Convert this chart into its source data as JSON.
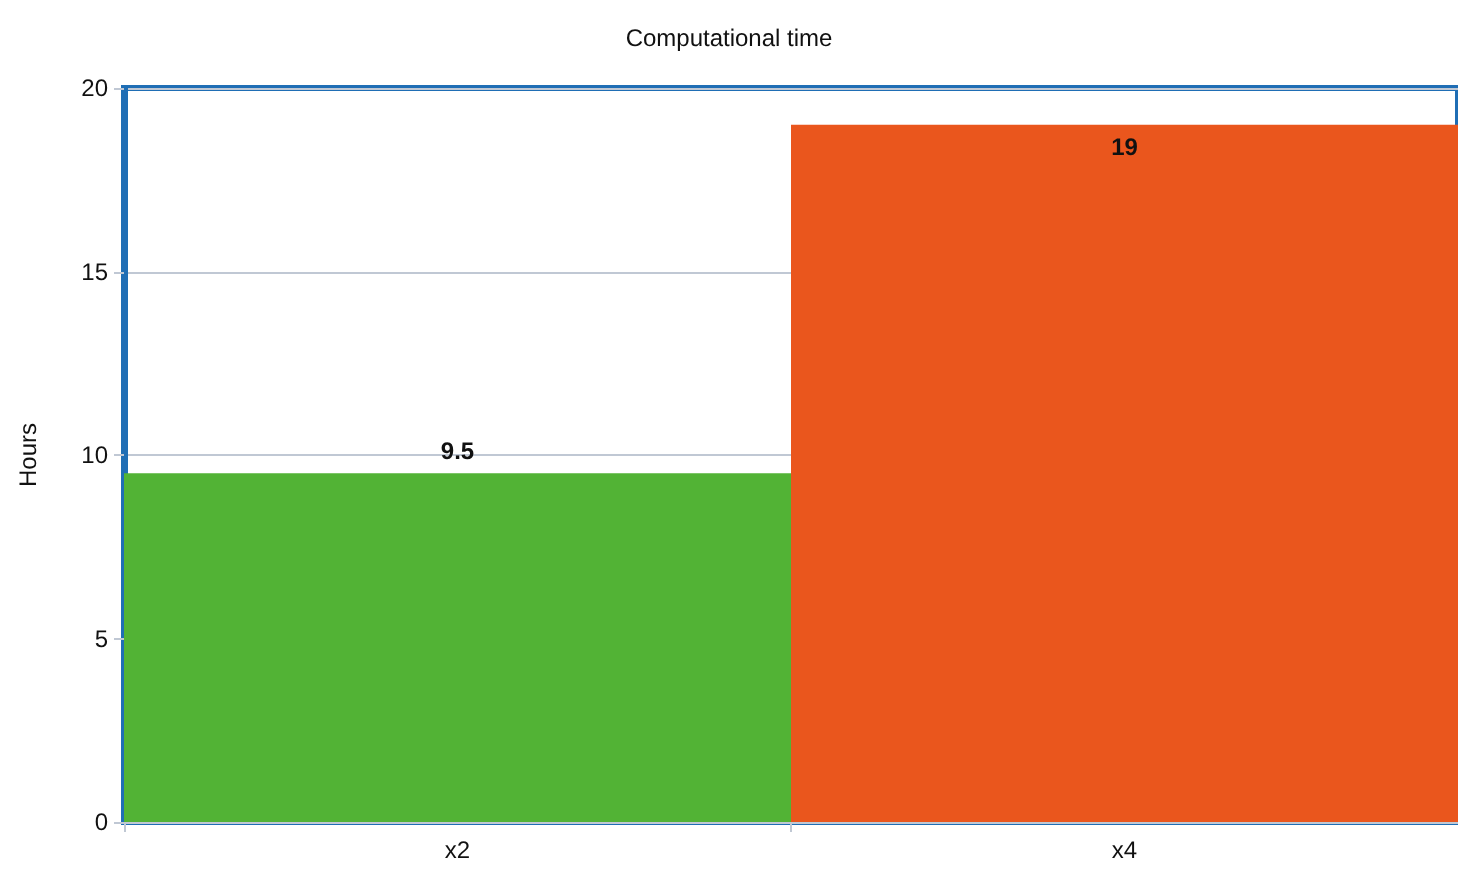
{
  "chart_data": {
    "type": "bar",
    "title": "Computational time",
    "ylabel": "Hours",
    "categories": [
      "x2",
      "x4"
    ],
    "values": [
      9.5,
      19
    ],
    "colors": [
      "#52b335",
      "#ea561d"
    ],
    "ylim": [
      0,
      20
    ],
    "yticks": [
      0,
      5,
      10,
      15,
      20
    ],
    "grid": "y",
    "data_labels": true
  }
}
